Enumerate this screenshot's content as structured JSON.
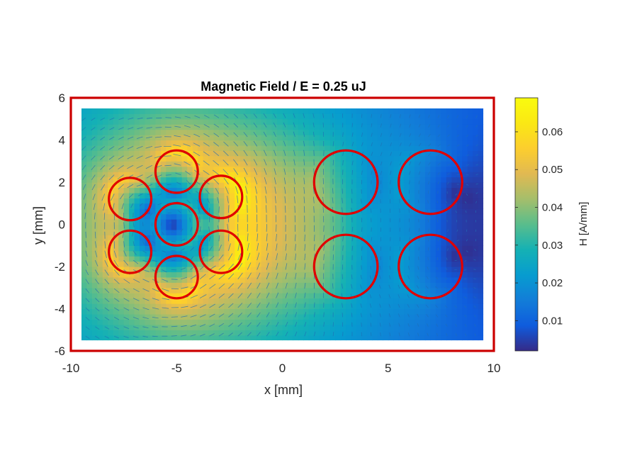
{
  "chart_data": {
    "type": "heatmap",
    "title": "Magnetic Field  / E = 0.25 uJ",
    "xlabel": "x [mm]",
    "ylabel": "y [mm]",
    "xlim": [
      -10,
      10
    ],
    "ylim": [
      -6,
      6
    ],
    "xticks": [
      -10,
      -5,
      0,
      5,
      10
    ],
    "yticks": [
      -6,
      -4,
      -2,
      0,
      2,
      4,
      6
    ],
    "xtick_labels": [
      "-10",
      "-5",
      "0",
      "5",
      "10"
    ],
    "ytick_labels": [
      "-6",
      "-4",
      "-2",
      "0",
      "2",
      "4",
      "6"
    ],
    "domain": {
      "x": [
        -9.5,
        9.5
      ],
      "y": [
        -5.5,
        5.5
      ]
    },
    "colorbar": {
      "label": "H [A/mm]",
      "range": [
        0.002,
        0.069
      ],
      "ticks": [
        0.01,
        0.02,
        0.03,
        0.04,
        0.05,
        0.06
      ],
      "tick_labels": [
        "0.01",
        "0.02",
        "0.03",
        "0.04",
        "0.05",
        "0.06"
      ],
      "colormap": "parula"
    },
    "field_summary": {
      "max_H": 0.067,
      "min_H": 0.003
    },
    "overlays": {
      "circle_color": "#e00000",
      "frame_color": "#cc0000",
      "arrow_color": "#1f6fb5",
      "circles": [
        {
          "x": -7.2,
          "y": 1.2,
          "r": 1.0
        },
        {
          "x": -7.2,
          "y": -1.3,
          "r": 1.0
        },
        {
          "x": -5.0,
          "y": 2.5,
          "r": 1.0
        },
        {
          "x": -5.0,
          "y": 0.0,
          "r": 1.0
        },
        {
          "x": -5.0,
          "y": -2.5,
          "r": 1.0
        },
        {
          "x": -2.9,
          "y": 1.3,
          "r": 1.0
        },
        {
          "x": -2.9,
          "y": -1.3,
          "r": 1.0
        },
        {
          "x": 3.0,
          "y": 2.0,
          "r": 1.5
        },
        {
          "x": 3.0,
          "y": -2.0,
          "r": 1.5
        },
        {
          "x": 7.0,
          "y": 2.0,
          "r": 1.5
        },
        {
          "x": 7.0,
          "y": -2.0,
          "r": 1.5
        }
      ]
    }
  }
}
